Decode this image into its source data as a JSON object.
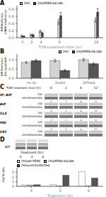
{
  "chart_data": [
    {
      "type": "bar",
      "title": "A",
      "xlabel": "TUN-treatment time (hr)",
      "ylabel": "BIP-Firefly Luc\nmRNA relative Luc",
      "x": [
        0,
        2,
        4,
        8,
        16
      ],
      "xlim": [
        -1.2,
        17.5
      ],
      "xticks": [
        0,
        2,
        4,
        8,
        16
      ],
      "series": [
        {
          "name": "293",
          "color": "#d3d3d3",
          "values": [
            0.05,
            0.08,
            0.18,
            0.45,
            0.5
          ],
          "errors": [
            0.02,
            0.02,
            0.03,
            0.07,
            0.06
          ]
        },
        {
          "name": "293/PERK-K618A",
          "color": "#555555",
          "values": [
            0.04,
            0.08,
            0.13,
            0.62,
            0.72
          ],
          "errors": [
            0.01,
            0.02,
            0.03,
            0.09,
            0.1
          ]
        }
      ],
      "ylim": [
        0,
        0.9
      ],
      "yticks": [
        {
          "value": 0,
          "label": "0.0"
        },
        0.2,
        0.4,
        0.6,
        0.8
      ],
      "legend": "upper left"
    },
    {
      "type": "bar",
      "title": "B",
      "ylabel": "BIP-Firefly Luc\nPer ug protein",
      "categories": [
        "no tg",
        "1ng/g",
        "100g/g"
      ],
      "series": [
        {
          "name": "293",
          "color": "#d3d3d3",
          "values": [
            0.85,
            0.95,
            1.0
          ],
          "errors": [
            0.05,
            0.07,
            0.07
          ]
        },
        {
          "name": "293/PERK-K618A",
          "color": "#555555",
          "values": [
            0.95,
            0.42,
            0.78
          ],
          "errors": [
            0.06,
            0.05,
            0.06
          ]
        }
      ],
      "ylim": [
        0,
        1.3
      ],
      "yticks": [
        {
          "value": 0,
          "label": "0.0"
        },
        0.5,
        {
          "value": 1,
          "label": "1.0"
        }
      ],
      "legend": "upper right"
    },
    {
      "type": "blot",
      "title": "C",
      "xlabel": "TUN-treatment time (hr)",
      "categories": [
        "0",
        "2",
        "4",
        "12"
      ],
      "rows": [
        "IP: BiP",
        "BiP",
        "CLX",
        "PDI",
        "CRT"
      ],
      "series": [
        {
          "name": "293",
          "color": "#c8c8c8"
        },
        {
          "name": "293/PERK-K618A",
          "color": "#787878"
        }
      ]
    },
    {
      "type": "blot",
      "title": "D",
      "annotations": [
        "BiP"
      ],
      "xlabel": "Treatment (hr)",
      "categories": [
        "0",
        "3",
        "6"
      ],
      "colors": [
        "#e0e0e0",
        "#b0b0b0",
        "#787878"
      ]
    },
    {
      "type": "bar",
      "xlabel": "Treatment (hr)",
      "ylabel": "Grp78 ratio",
      "categories": [
        "0",
        "3",
        "6"
      ],
      "series": [
        {
          "name": "293/wt PERK",
          "color": "#ffffff",
          "values": [
            0.3,
            0.4,
            3.2
          ]
        },
        {
          "name": "293/PERK-K618A",
          "color": "#c0c0c0",
          "values": [
            0.3,
            0.1,
            0.1
          ]
        },
        {
          "name": "293/untransfected",
          "color": "#555555",
          "values": [
            0.35,
            2.4,
            1.8
          ]
        }
      ],
      "ylim": [
        0,
        4
      ],
      "yticks": [
        0,
        1,
        2,
        3
      ],
      "legend": "upper left"
    }
  ]
}
